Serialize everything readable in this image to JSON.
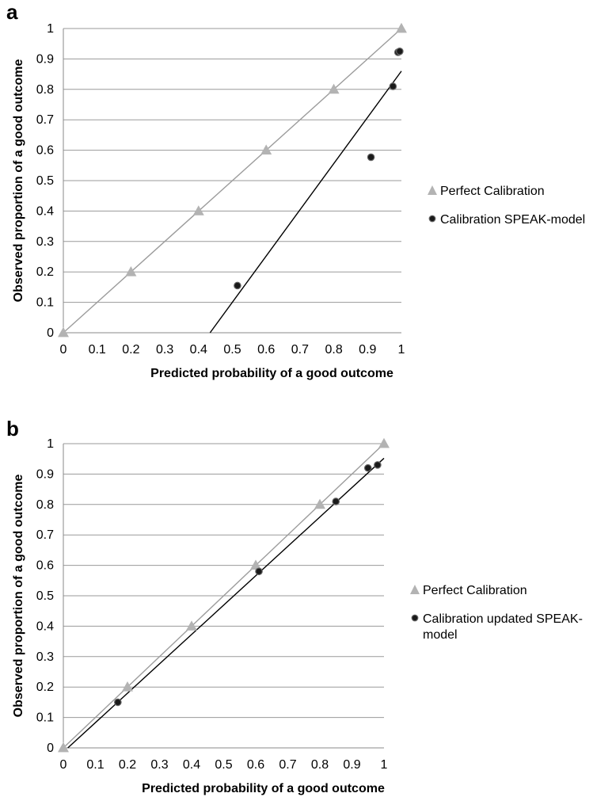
{
  "chart_data": [
    {
      "panel_letter": "a",
      "type": "scatter",
      "xlabel": "Predicted probability of a good outcome",
      "ylabel": "Observed proportion of a good outcome",
      "xlim": [
        0,
        1
      ],
      "ylim": [
        0,
        1
      ],
      "xticks": [
        "0",
        "0.1",
        "0.2",
        "0.3",
        "0.4",
        "0.5",
        "0.6",
        "0.7",
        "0.8",
        "0.9",
        "1"
      ],
      "yticks": [
        "0",
        "0.1",
        "0.2",
        "0.3",
        "0.4",
        "0.5",
        "0.6",
        "0.7",
        "0.8",
        "0.9",
        "1"
      ],
      "grid": "horizontal",
      "legend_position": "right",
      "series": [
        {
          "name": "Perfect Calibration",
          "marker": "triangle",
          "color": "#b3b3b3",
          "points": [
            [
              0,
              0
            ],
            [
              0.2,
              0.2
            ],
            [
              0.4,
              0.4
            ],
            [
              0.6,
              0.6
            ],
            [
              0.8,
              0.8
            ],
            [
              1,
              1
            ]
          ],
          "trendline": [
            [
              0,
              0
            ],
            [
              1,
              1
            ]
          ]
        },
        {
          "name": "Calibration SPEAK-model",
          "marker": "dot",
          "color": "#1a1a1a",
          "points": [
            [
              0.515,
              0.155
            ],
            [
              0.91,
              0.577
            ],
            [
              0.975,
              0.81
            ],
            [
              0.99,
              0.922
            ],
            [
              0.995,
              0.925
            ]
          ],
          "trendline": [
            [
              0.434,
              0
            ],
            [
              1,
              0.86
            ]
          ]
        }
      ]
    },
    {
      "panel_letter": "b",
      "type": "scatter",
      "xlabel": "Predicted probability of a good outcome",
      "ylabel": "Observed proportion of a good outcome",
      "xlim": [
        0,
        1
      ],
      "ylim": [
        0,
        1
      ],
      "xticks": [
        "0",
        "0.1",
        "0.2",
        "0.3",
        "0.4",
        "0.5",
        "0.6",
        "0.7",
        "0.8",
        "0.9",
        "1"
      ],
      "yticks": [
        "0",
        "0.1",
        "0.2",
        "0.3",
        "0.4",
        "0.5",
        "0.6",
        "0.7",
        "0.8",
        "0.9",
        "1"
      ],
      "grid": "horizontal",
      "legend_position": "right",
      "series": [
        {
          "name": "Perfect Calibration",
          "marker": "triangle",
          "color": "#b3b3b3",
          "points": [
            [
              0,
              0
            ],
            [
              0.2,
              0.2
            ],
            [
              0.4,
              0.4
            ],
            [
              0.6,
              0.6
            ],
            [
              0.8,
              0.8
            ],
            [
              1,
              1
            ]
          ],
          "trendline": [
            [
              0,
              0
            ],
            [
              1,
              1
            ]
          ]
        },
        {
          "name": "Calibration updated SPEAK-model",
          "marker": "dot",
          "color": "#1a1a1a",
          "points": [
            [
              0.17,
              0.15
            ],
            [
              0.61,
              0.58
            ],
            [
              0.85,
              0.81
            ],
            [
              0.95,
              0.92
            ],
            [
              0.98,
              0.93
            ]
          ],
          "trendline": [
            [
              0.014,
              0
            ],
            [
              1,
              0.952
            ]
          ]
        }
      ]
    }
  ]
}
